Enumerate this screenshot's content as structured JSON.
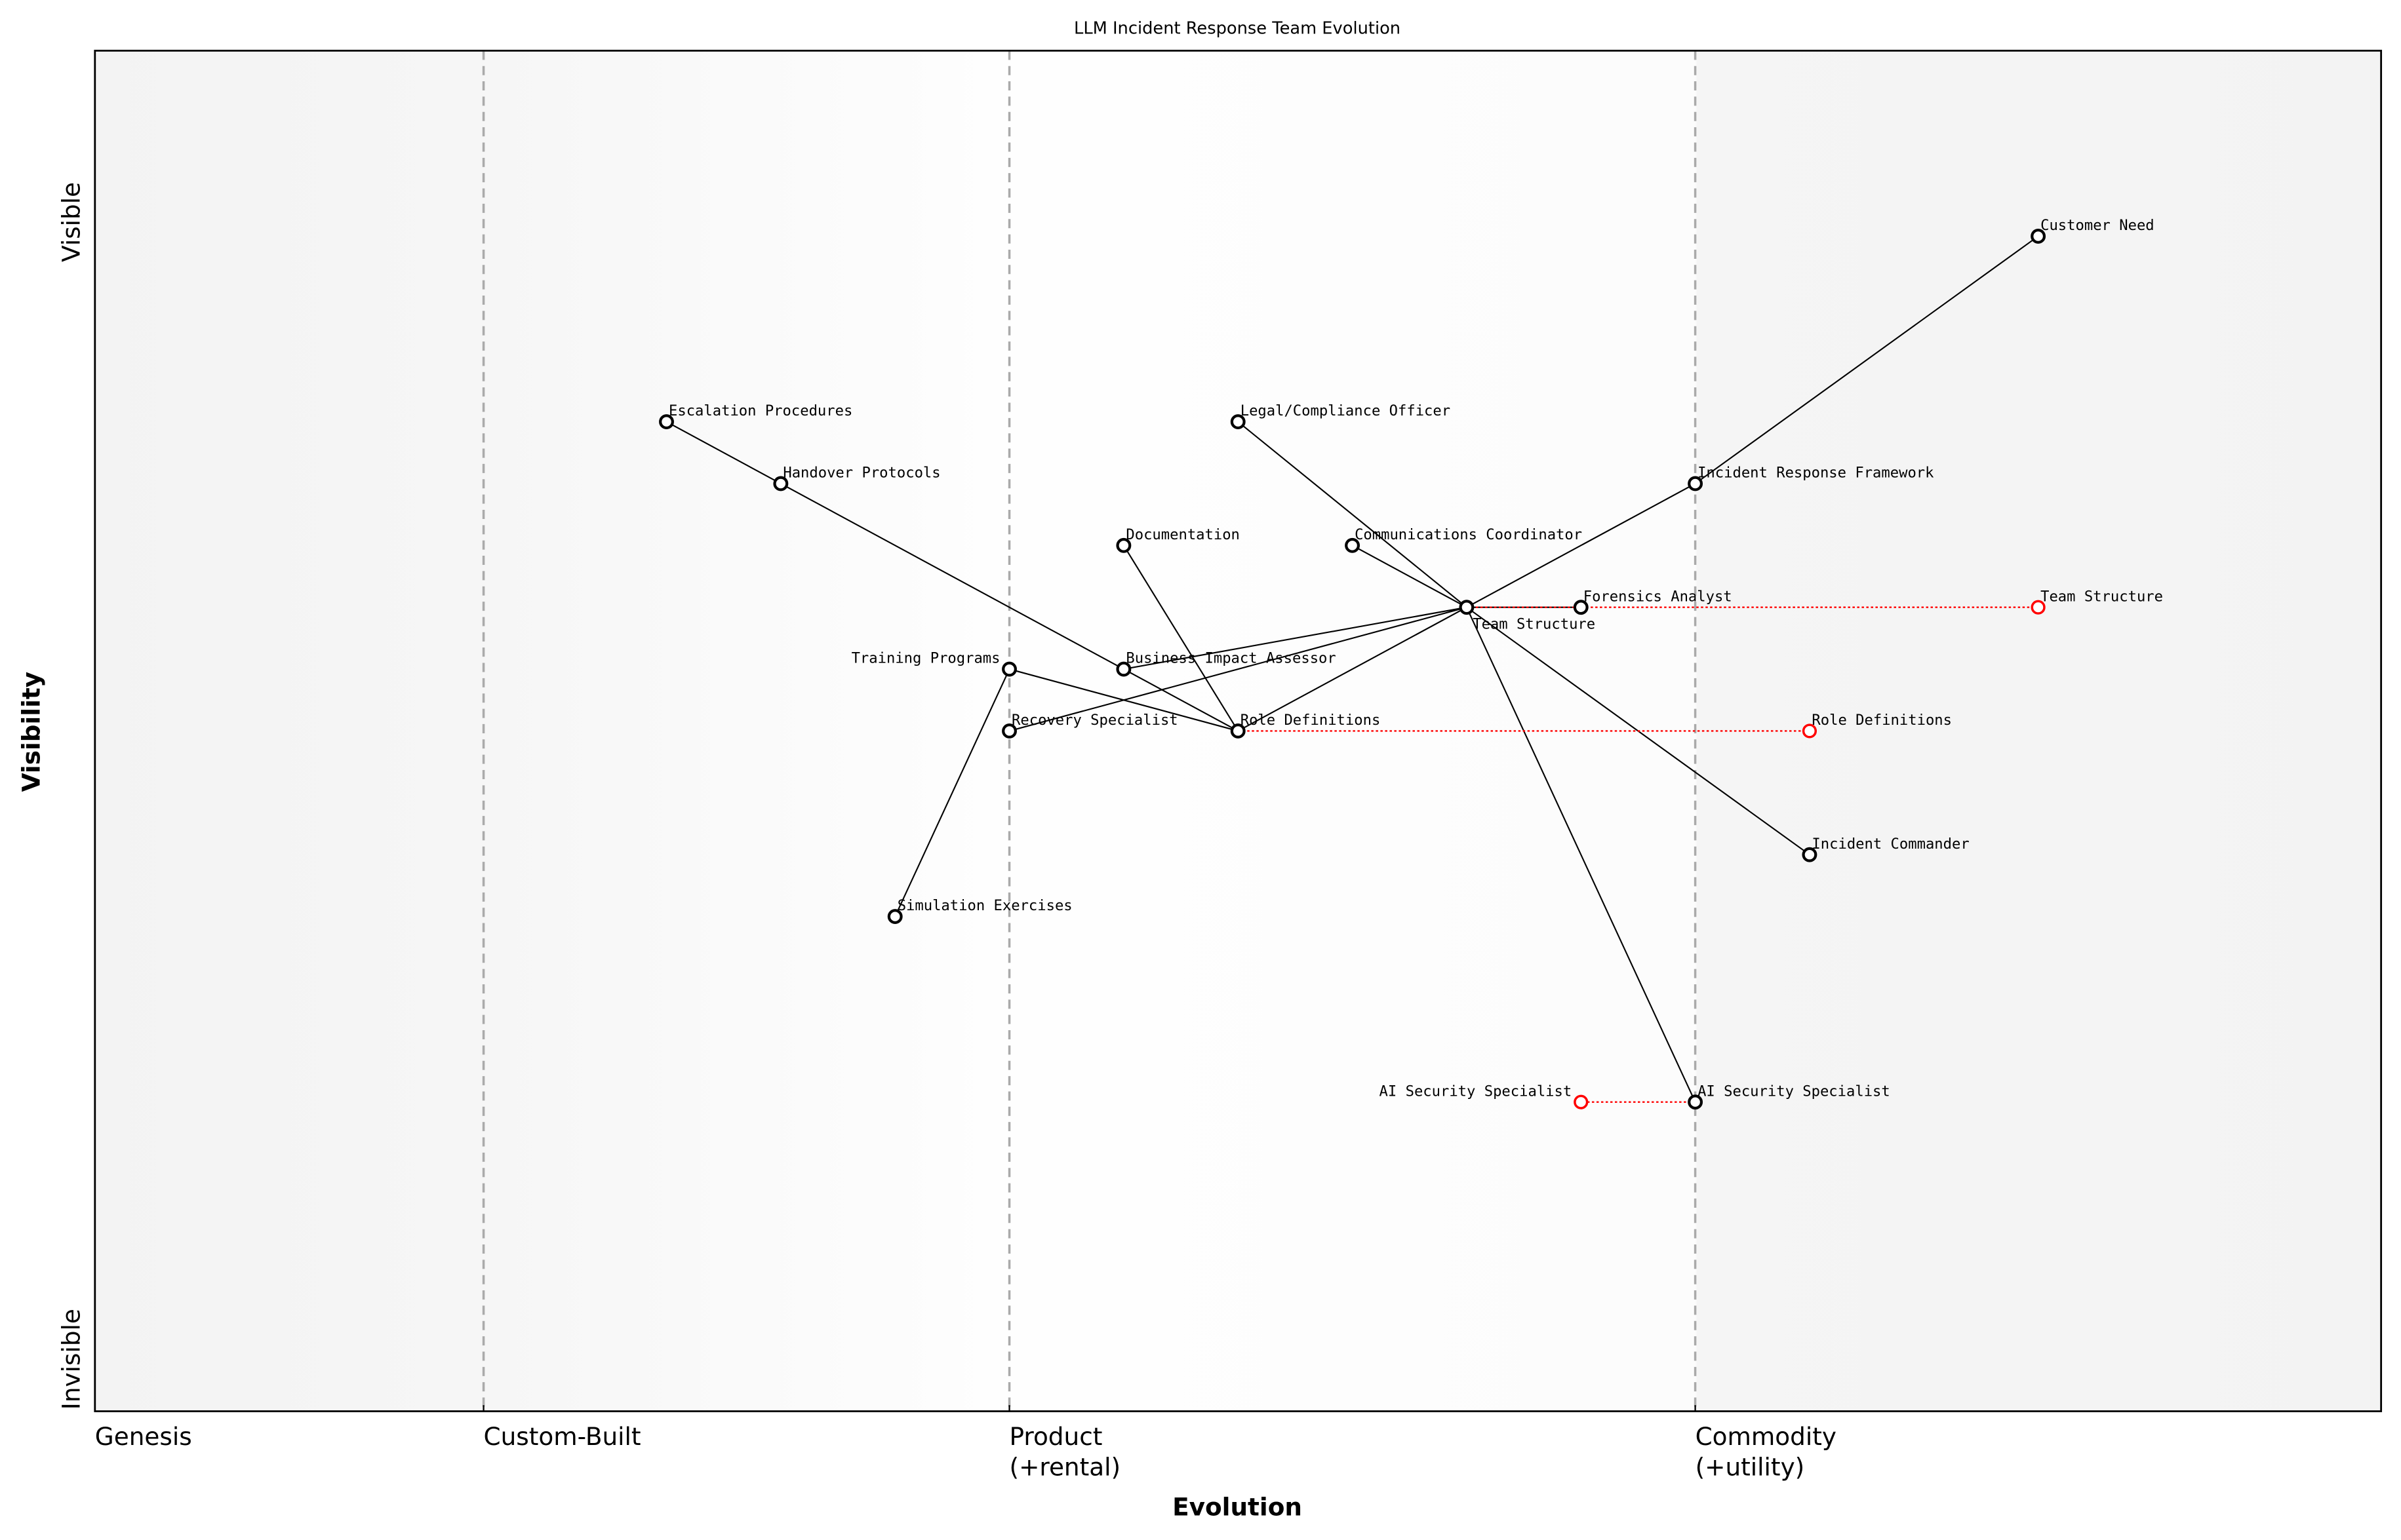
{
  "chart_data": {
    "type": "scatter",
    "title": "LLM Incident Response Team Evolution",
    "xlabel": "Evolution",
    "ylabel": "Visibility",
    "xlim": [
      0,
      1
    ],
    "ylim": [
      0,
      1.1
    ],
    "grid": false,
    "x_stages": [
      {
        "x": 0.0,
        "label": "Genesis"
      },
      {
        "x": 0.17,
        "label": "Custom-Built"
      },
      {
        "x": 0.4,
        "label": "Product\n(+rental)"
      },
      {
        "x": 0.7,
        "label": "Commodity\n(+utility)"
      }
    ],
    "y_labels": {
      "top": "Visible",
      "bottom": "Invisible"
    },
    "components": [
      {
        "name": "Customer Need",
        "x": 0.85,
        "y": 0.95
      },
      {
        "name": "Incident Response Framework",
        "x": 0.7,
        "y": 0.75
      },
      {
        "name": "Team Structure",
        "x": 0.6,
        "y": 0.65
      },
      {
        "name": "Role Definitions",
        "x": 0.5,
        "y": 0.55
      },
      {
        "name": "Incident Commander",
        "x": 0.75,
        "y": 0.45
      },
      {
        "name": "AI Security Specialist",
        "x": 0.7,
        "y": 0.25
      },
      {
        "name": "Communications Coordinator",
        "x": 0.55,
        "y": 0.7
      },
      {
        "name": "Legal/Compliance Officer",
        "x": 0.5,
        "y": 0.8
      },
      {
        "name": "Forensics Analyst",
        "x": 0.65,
        "y": 0.65
      },
      {
        "name": "Business Impact Assessor",
        "x": 0.45,
        "y": 0.6
      },
      {
        "name": "Recovery Specialist",
        "x": 0.4,
        "y": 0.55
      },
      {
        "name": "Training Programs",
        "x": 0.4,
        "y": 0.6
      },
      {
        "name": "Simulation Exercises",
        "x": 0.35,
        "y": 0.4
      },
      {
        "name": "Escalation Procedures",
        "x": 0.25,
        "y": 0.8
      },
      {
        "name": "Handover Protocols",
        "x": 0.3,
        "y": 0.75
      },
      {
        "name": "Documentation",
        "x": 0.45,
        "y": 0.7
      }
    ],
    "links": [
      [
        "Customer Need",
        "Incident Response Framework"
      ],
      [
        "Incident Response Framework",
        "Team Structure"
      ],
      [
        "Team Structure",
        "Role Definitions"
      ],
      [
        "Team Structure",
        "Incident Commander"
      ],
      [
        "Team Structure",
        "AI Security Specialist"
      ],
      [
        "Team Structure",
        "Communications Coordinator"
      ],
      [
        "Team Structure",
        "Legal/Compliance Officer"
      ],
      [
        "Team Structure",
        "Forensics Analyst"
      ],
      [
        "Team Structure",
        "Business Impact Assessor"
      ],
      [
        "Team Structure",
        "Recovery Specialist"
      ],
      [
        "Role Definitions",
        "Training Programs"
      ],
      [
        "Training Programs",
        "Simulation Exercises"
      ],
      [
        "Escalation Procedures",
        "Handover Protocols"
      ],
      [
        "Handover Protocols",
        "Business Impact Assessor"
      ],
      [
        "Business Impact Assessor",
        "Role Definitions"
      ],
      [
        "Role Definitions",
        "Documentation"
      ]
    ],
    "evolutions": [
      {
        "name": "Team Structure",
        "from": 0.6,
        "to": 0.85,
        "y": 0.65
      },
      {
        "name": "Role Definitions",
        "from": 0.5,
        "to": 0.75,
        "y": 0.55
      },
      {
        "name": "AI Security Specialist",
        "from": 0.7,
        "to": 0.65,
        "y": 0.25
      }
    ],
    "colors": {
      "component": "#000000",
      "evolved": "#ff0000",
      "stage_line": "#aaaaaa"
    }
  }
}
